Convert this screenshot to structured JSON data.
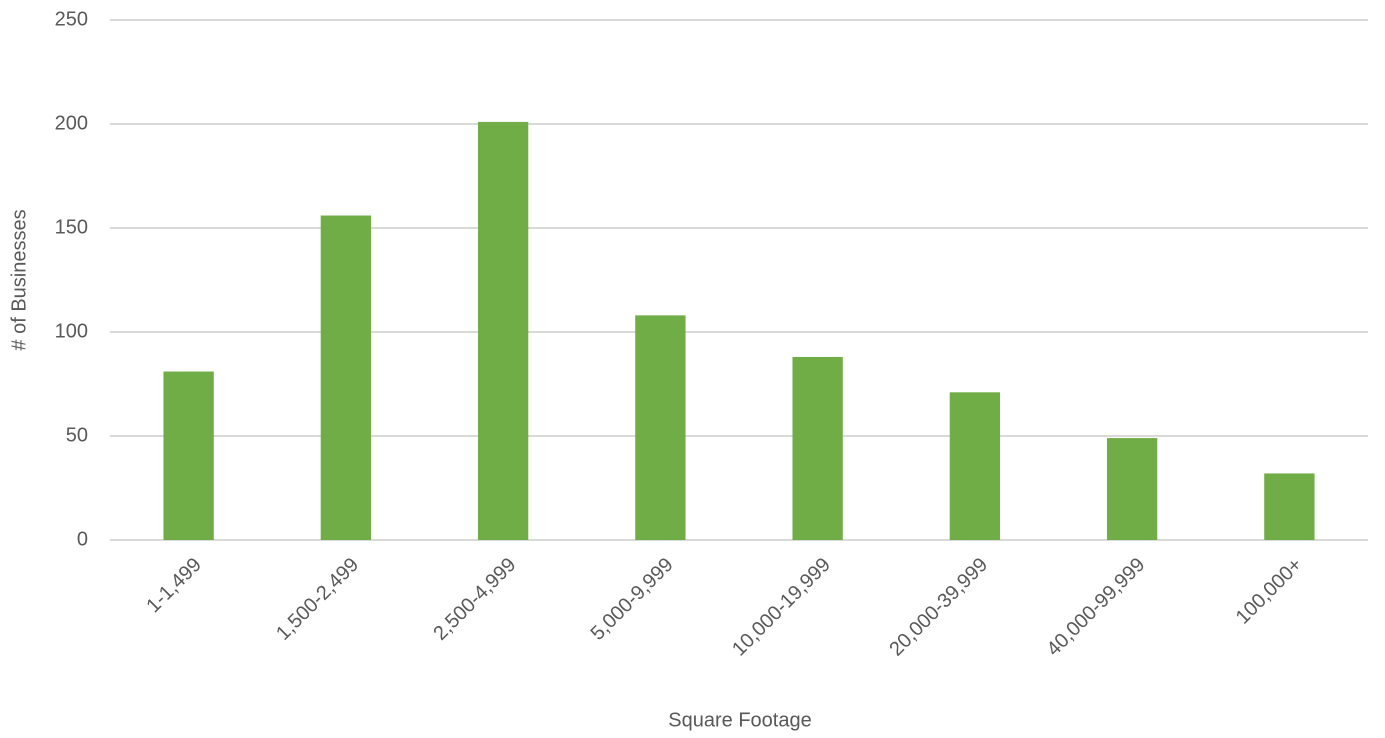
{
  "chart_data": {
    "type": "bar",
    "categories": [
      "1-1,499",
      "1,500-2,499",
      "2,500-4,999",
      "5,000-9,999",
      "10,000-19,999",
      "20,000-39,999",
      "40,000-99,999",
      "100,000+"
    ],
    "values": [
      81,
      156,
      201,
      108,
      88,
      71,
      49,
      32
    ],
    "color": "#70ad47",
    "x_label": "Square Footage",
    "y_label": "# of Businesses",
    "ylim": [
      0,
      250
    ],
    "yticks": [
      0,
      50,
      100,
      150,
      200,
      250
    ],
    "grid": true
  }
}
